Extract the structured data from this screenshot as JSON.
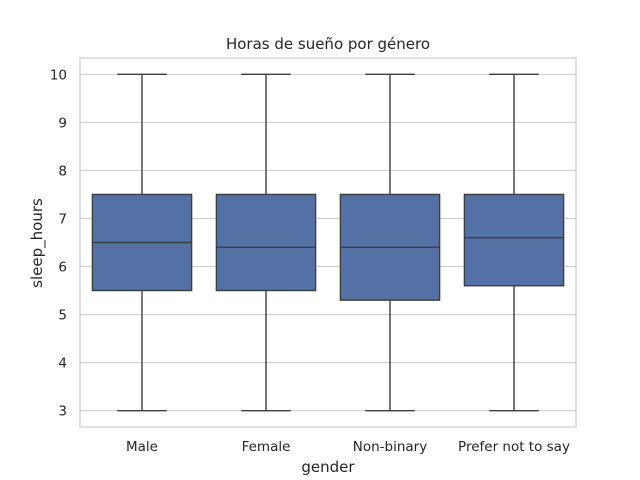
{
  "chart_data": {
    "type": "box",
    "title": "Horas de sueño por género",
    "xlabel": "gender",
    "ylabel": "sleep_hours",
    "categories": [
      "Male",
      "Female",
      "Non-binary",
      "Prefer not to say"
    ],
    "boxes": [
      {
        "category": "Male",
        "min": 3,
        "q1": 5.5,
        "median": 6.5,
        "q3": 7.5,
        "max": 10
      },
      {
        "category": "Female",
        "min": 3,
        "q1": 5.5,
        "median": 6.4,
        "q3": 7.5,
        "max": 10
      },
      {
        "category": "Non-binary",
        "min": 3,
        "q1": 5.3,
        "median": 6.4,
        "q3": 7.5,
        "max": 10
      },
      {
        "category": "Prefer not to say",
        "min": 3,
        "q1": 5.6,
        "median": 6.6,
        "q3": 7.5,
        "max": 10
      }
    ],
    "yticks": [
      3,
      4,
      5,
      6,
      7,
      8,
      9,
      10
    ],
    "ylim": [
      2.66,
      10.34
    ],
    "grid": true,
    "colors": {
      "box_fill": "#5471a6",
      "box_edge": "#3d3d3d",
      "grid": "#cccccc",
      "frame": "#cccccc"
    }
  }
}
